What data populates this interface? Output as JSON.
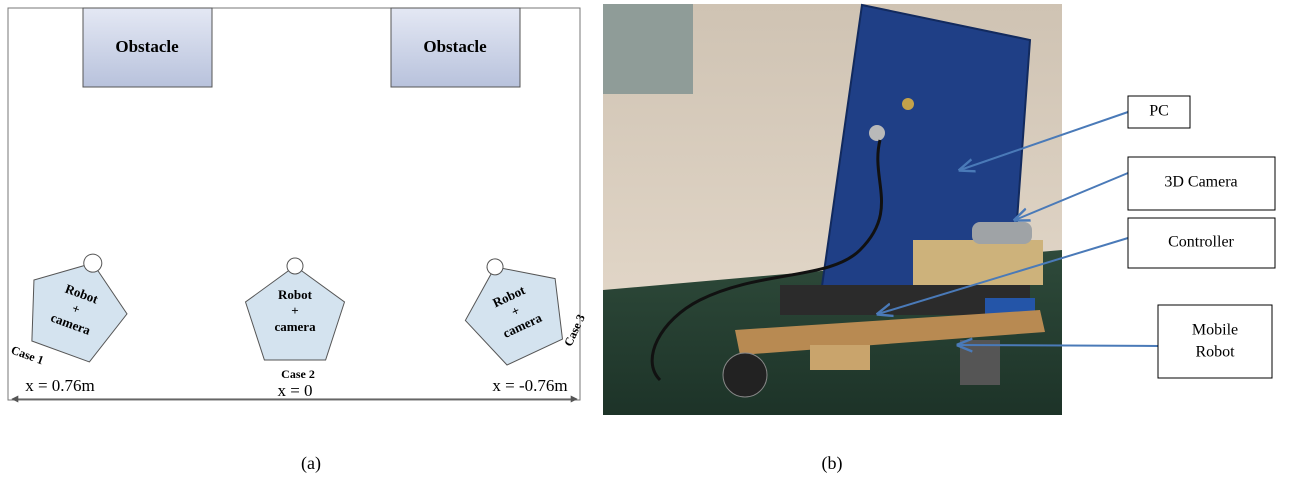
{
  "panel_a": {
    "obstacles": [
      "Obstacle",
      "Obstacle"
    ],
    "robots": [
      {
        "lines": [
          "Robot",
          "+",
          "camera"
        ],
        "case": "Case 1",
        "position": "x = 0.76m"
      },
      {
        "lines": [
          "Robot",
          "+",
          "camera"
        ],
        "case": "Case 2",
        "position": "x = 0"
      },
      {
        "lines": [
          "Robot",
          "+",
          "camera"
        ],
        "case": "Case 3",
        "position": "x = -0.76m"
      }
    ],
    "caption": "(a)"
  },
  "panel_b": {
    "callouts": [
      {
        "lines": [
          "PC"
        ]
      },
      {
        "lines": [
          "3D Camera"
        ]
      },
      {
        "lines": [
          "Controller"
        ]
      },
      {
        "lines": [
          "Mobile",
          "Robot"
        ]
      }
    ],
    "caption": "(b)"
  }
}
